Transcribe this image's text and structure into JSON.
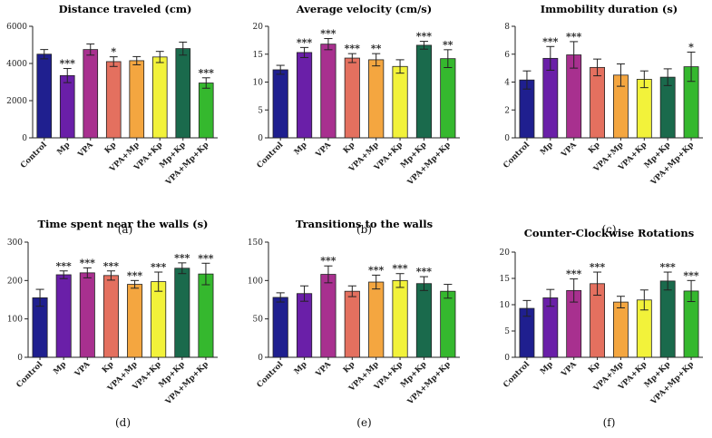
{
  "chart_data": [
    {
      "type": "bar",
      "panel_label": "(a)",
      "title": "Distance traveled (cm)",
      "categories": [
        "Control",
        "Mp",
        "VPA",
        "Kp",
        "VPA+Mp",
        "VPA+Kp",
        "Mp+Kp",
        "VPA+Mp+Kp"
      ],
      "values": [
        4500,
        3350,
        4750,
        4100,
        4150,
        4350,
        4800,
        2950
      ],
      "errors": [
        250,
        380,
        300,
        260,
        220,
        300,
        350,
        280
      ],
      "significance": [
        "",
        "***",
        "",
        "*",
        "",
        "",
        "",
        "***"
      ],
      "ylim": [
        0,
        6000
      ],
      "yticks": [
        0,
        2000,
        4000,
        6000
      ],
      "colors": [
        "#1f1f8f",
        "#6a1fa8",
        "#a8308f",
        "#e4705f",
        "#f4a640",
        "#f2f23a",
        "#1a6a4c",
        "#35b82e"
      ]
    },
    {
      "type": "bar",
      "panel_label": "(b)",
      "title": "Average velocity (cm/s)",
      "categories": [
        "Control",
        "Mp",
        "VPA",
        "Kp",
        "VPA+Mp",
        "VPA+Kp",
        "Mp+Kp",
        "VPA+Mp+Kp"
      ],
      "values": [
        12.2,
        15.3,
        16.8,
        14.3,
        14.0,
        12.8,
        16.6,
        14.2
      ],
      "errors": [
        0.8,
        0.9,
        1.0,
        0.8,
        1.1,
        1.2,
        0.7,
        1.6
      ],
      "significance": [
        "",
        "***",
        "***",
        "***",
        "**",
        "",
        "***",
        "**"
      ],
      "ylim": [
        0,
        20
      ],
      "yticks": [
        0,
        5,
        10,
        15,
        20
      ],
      "colors": [
        "#1f1f8f",
        "#6a1fa8",
        "#a8308f",
        "#e4705f",
        "#f4a640",
        "#f2f23a",
        "#1a6a4c",
        "#35b82e"
      ]
    },
    {
      "type": "bar",
      "panel_label": "(c)",
      "title": "Immobility duration (s)",
      "categories": [
        "Control",
        "Mp",
        "VPA",
        "Kp",
        "VPA+Mp",
        "VPA+Kp",
        "Mp+Kp",
        "VPA+Mp+Kp"
      ],
      "values": [
        4.15,
        5.7,
        5.95,
        5.05,
        4.5,
        4.2,
        4.35,
        5.1
      ],
      "errors": [
        0.65,
        0.85,
        0.95,
        0.6,
        0.8,
        0.6,
        0.6,
        1.05
      ],
      "significance": [
        "",
        "***",
        "***",
        "",
        "",
        "",
        "",
        "*"
      ],
      "ylim": [
        0,
        8
      ],
      "yticks": [
        0,
        2,
        4,
        6,
        8
      ],
      "colors": [
        "#1f1f8f",
        "#6a1fa8",
        "#a8308f",
        "#e4705f",
        "#f4a640",
        "#f2f23a",
        "#1a6a4c",
        "#35b82e"
      ]
    },
    {
      "type": "bar",
      "panel_label": "(d)",
      "title": "Time spent near the walls (s)",
      "categories": [
        "Control",
        "Mp",
        "VPA",
        "Kp",
        "VPA+Mp",
        "VPA+Kp",
        "Mp+Kp",
        "VPA+Mp+Kp"
      ],
      "values": [
        155,
        215,
        220,
        213,
        190,
        197,
        232,
        217
      ],
      "errors": [
        22,
        10,
        13,
        12,
        10,
        25,
        14,
        28
      ],
      "significance": [
        "",
        "***",
        "***",
        "***",
        "***",
        "***",
        "***",
        "***"
      ],
      "ylim": [
        0,
        300
      ],
      "yticks": [
        0,
        100,
        200,
        300
      ],
      "colors": [
        "#1f1f8f",
        "#6a1fa8",
        "#a8308f",
        "#e4705f",
        "#f4a640",
        "#f2f23a",
        "#1a6a4c",
        "#35b82e"
      ]
    },
    {
      "type": "bar",
      "panel_label": "(e)",
      "title": "Transitions to the walls",
      "categories": [
        "Control",
        "Mp",
        "VPA",
        "Kp",
        "VPA+Mp",
        "VPA+Kp",
        "Mp+Kp",
        "VPA+Mp+Kp"
      ],
      "values": [
        78,
        83,
        108,
        86,
        98,
        100,
        96,
        86
      ],
      "errors": [
        6,
        10,
        11,
        7,
        9,
        9,
        9,
        9
      ],
      "significance": [
        "",
        "",
        "***",
        "",
        "***",
        "***",
        "***",
        ""
      ],
      "ylim": [
        0,
        150
      ],
      "yticks": [
        0,
        50,
        100,
        150
      ],
      "colors": [
        "#1f1f8f",
        "#6a1fa8",
        "#a8308f",
        "#e4705f",
        "#f4a640",
        "#f2f23a",
        "#1a6a4c",
        "#35b82e"
      ]
    },
    {
      "type": "bar",
      "panel_label": "(f)",
      "title": "Counter-Clockwise Rotations",
      "categories": [
        "Control",
        "Mp",
        "VPA",
        "Kp",
        "VPA+Mp",
        "VPA+Kp",
        "Mp+Kp",
        "VPA+Mp+Kp"
      ],
      "values": [
        9.3,
        11.3,
        12.7,
        14.0,
        10.5,
        10.9,
        14.5,
        12.6
      ],
      "errors": [
        1.5,
        1.6,
        2.2,
        2.2,
        1.1,
        1.9,
        1.7,
        2.0
      ],
      "significance": [
        "",
        "",
        "***",
        "***",
        "",
        "",
        "***",
        "***"
      ],
      "ylim": [
        0,
        20
      ],
      "yticks": [
        0,
        5,
        10,
        15,
        20
      ],
      "colors": [
        "#1f1f8f",
        "#6a1fa8",
        "#a8308f",
        "#e4705f",
        "#f4a640",
        "#f2f23a",
        "#1a6a4c",
        "#35b82e"
      ]
    }
  ]
}
